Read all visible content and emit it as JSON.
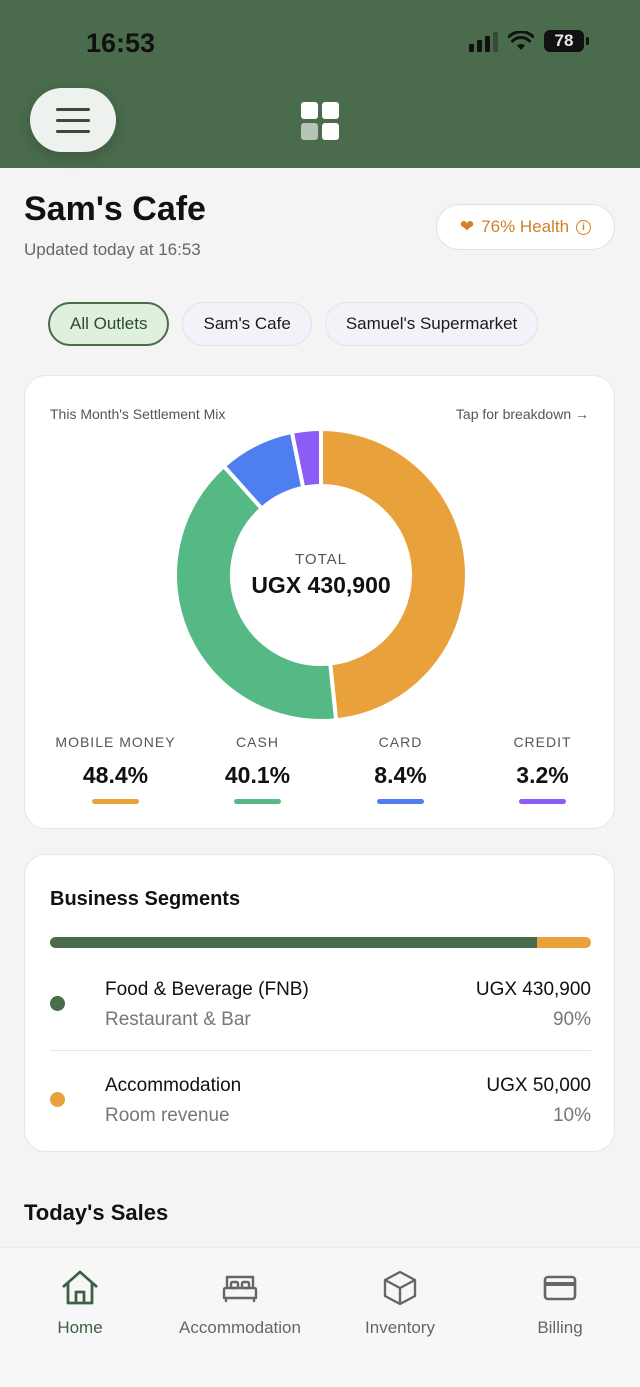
{
  "status_bar": {
    "time": "16:53",
    "battery": "78"
  },
  "header": {
    "title": "Sam's Cafe",
    "updated": "Updated today at 16:53",
    "health_label": "76% Health"
  },
  "outlet_chips": [
    {
      "label": "All Outlets",
      "active": true
    },
    {
      "label": "Sam's Cafe",
      "active": false
    },
    {
      "label": "Samuel's Supermarket",
      "active": false
    }
  ],
  "settlement_mix": {
    "title": "This Month's Settlement Mix",
    "breakdown_link": "Tap for breakdown →",
    "total_label": "TOTAL",
    "total_value": "UGX 430,900",
    "items": [
      {
        "label": "MOBILE MONEY",
        "value": "48.4%",
        "color": "#e9a23b"
      },
      {
        "label": "CASH",
        "value": "40.1%",
        "color": "#55b985"
      },
      {
        "label": "CARD",
        "value": "8.4%",
        "color": "#4f7ef0"
      },
      {
        "label": "CREDIT",
        "value": "3.2%",
        "color": "#8b5cf6"
      }
    ]
  },
  "chart_data": {
    "type": "pie",
    "categories": [
      "MOBILE MONEY",
      "CASH",
      "CARD",
      "CREDIT"
    ],
    "values": [
      48.4,
      40.1,
      8.4,
      3.2
    ],
    "colors": [
      "#e9a23b",
      "#55b985",
      "#4f7ef0",
      "#8b5cf6"
    ]
  },
  "business_segments": {
    "title": "Business Segments",
    "bar_fractions": [
      0.9,
      0.1
    ],
    "items": [
      {
        "name": "Food & Beverage (FNB)",
        "sub": "Restaurant & Bar",
        "amount": "UGX 430,900",
        "percent": "90%",
        "color": "#4a6b4c"
      },
      {
        "name": "Accommodation",
        "sub": "Room revenue",
        "amount": "UGX 50,000",
        "percent": "10%",
        "color": "#e9a23b"
      }
    ]
  },
  "todays_sales": {
    "title": "Today's Sales"
  },
  "bottom_nav": {
    "items": [
      {
        "label": "Home",
        "icon": "home-icon",
        "active": true
      },
      {
        "label": "Accommodation",
        "icon": "bed-icon",
        "active": false
      },
      {
        "label": "Inventory",
        "icon": "box-icon",
        "active": false
      },
      {
        "label": "Billing",
        "icon": "card-icon",
        "active": false
      }
    ]
  }
}
